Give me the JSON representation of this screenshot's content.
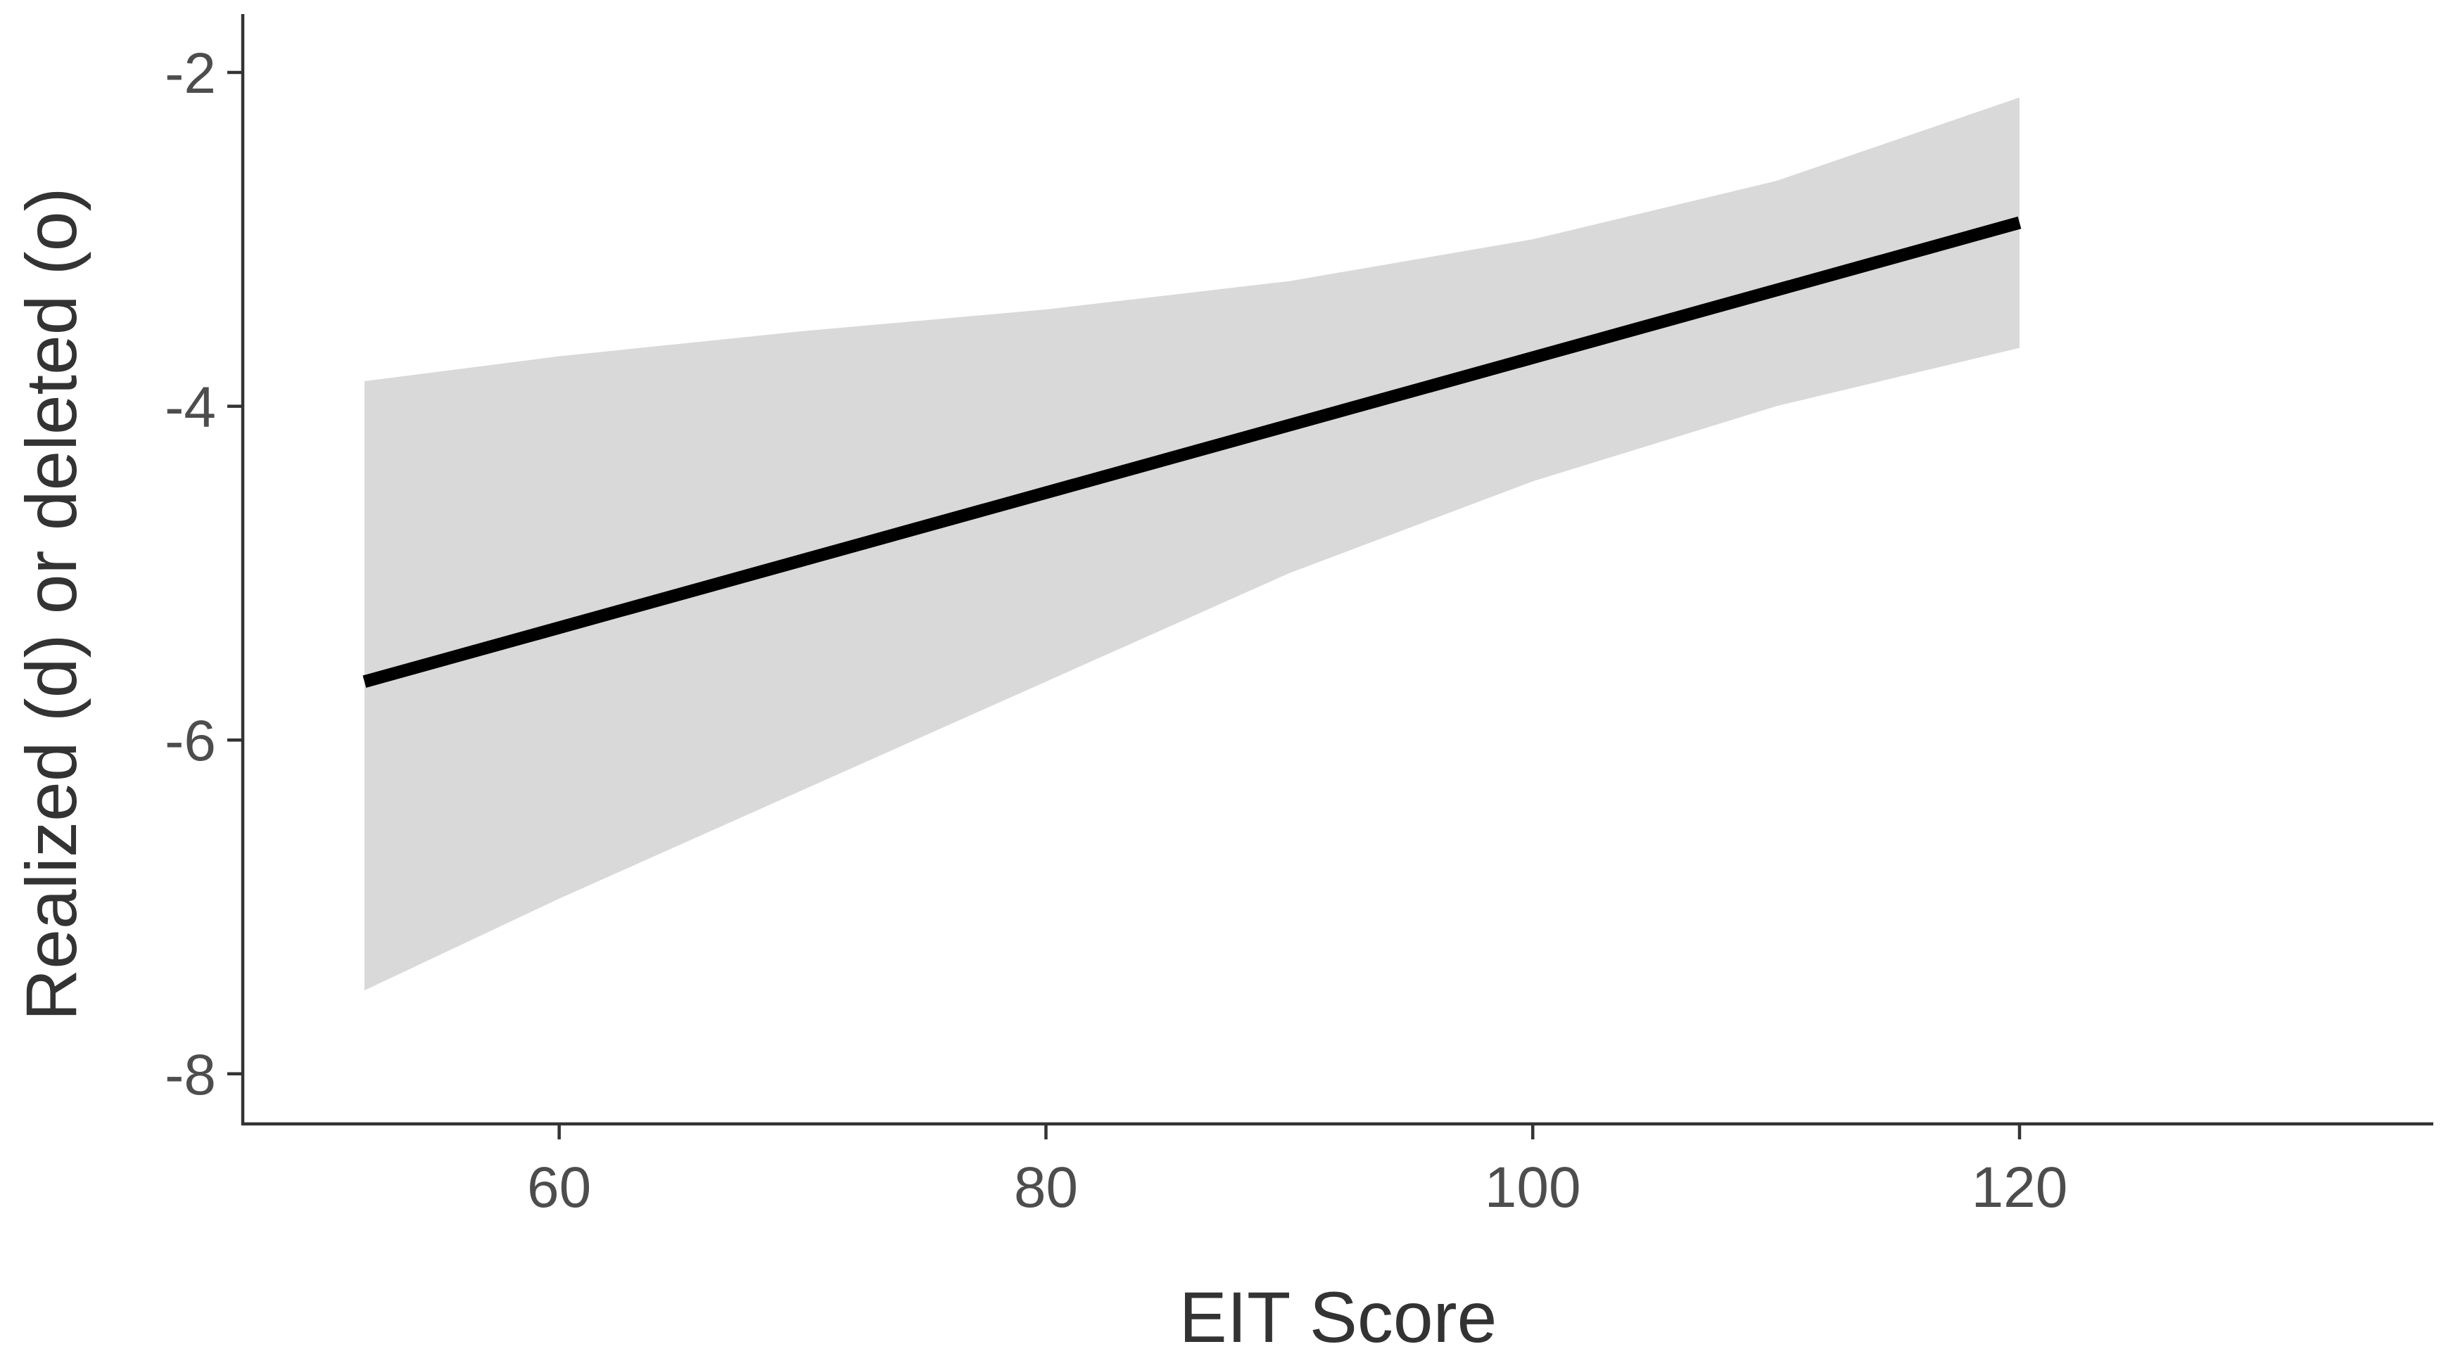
{
  "chart_data": {
    "type": "line",
    "title": "",
    "xlabel": "EIT Score",
    "ylabel": "Realized (d) or deleted (o)",
    "xlim": [
      47,
      137
    ],
    "ylim": [
      -8.3,
      -1.65
    ],
    "x_ticks": [
      60,
      80,
      100,
      120
    ],
    "y_ticks": [
      -8,
      -6,
      -4,
      -2
    ],
    "x_tick_labels": [
      "60",
      "80",
      "100",
      "120"
    ],
    "y_tick_labels": [
      "-8",
      "-6",
      "-4",
      "-2"
    ],
    "grid": false,
    "legend": "none",
    "series": [
      {
        "x": [
          52,
          120
        ],
        "y": [
          -5.65,
          -2.9
        ],
        "color": "#000000"
      }
    ],
    "confidence_band": {
      "x": [
        52,
        60,
        70,
        80,
        90,
        100,
        110,
        120
      ],
      "lower": [
        -7.5,
        -6.95,
        -6.3,
        -5.65,
        -5.0,
        -4.45,
        -4.0,
        -3.65
      ],
      "upper": [
        -3.85,
        -3.7,
        -3.55,
        -3.42,
        -3.25,
        -3.0,
        -2.65,
        -2.15
      ],
      "color": "#d9d9d9"
    }
  }
}
